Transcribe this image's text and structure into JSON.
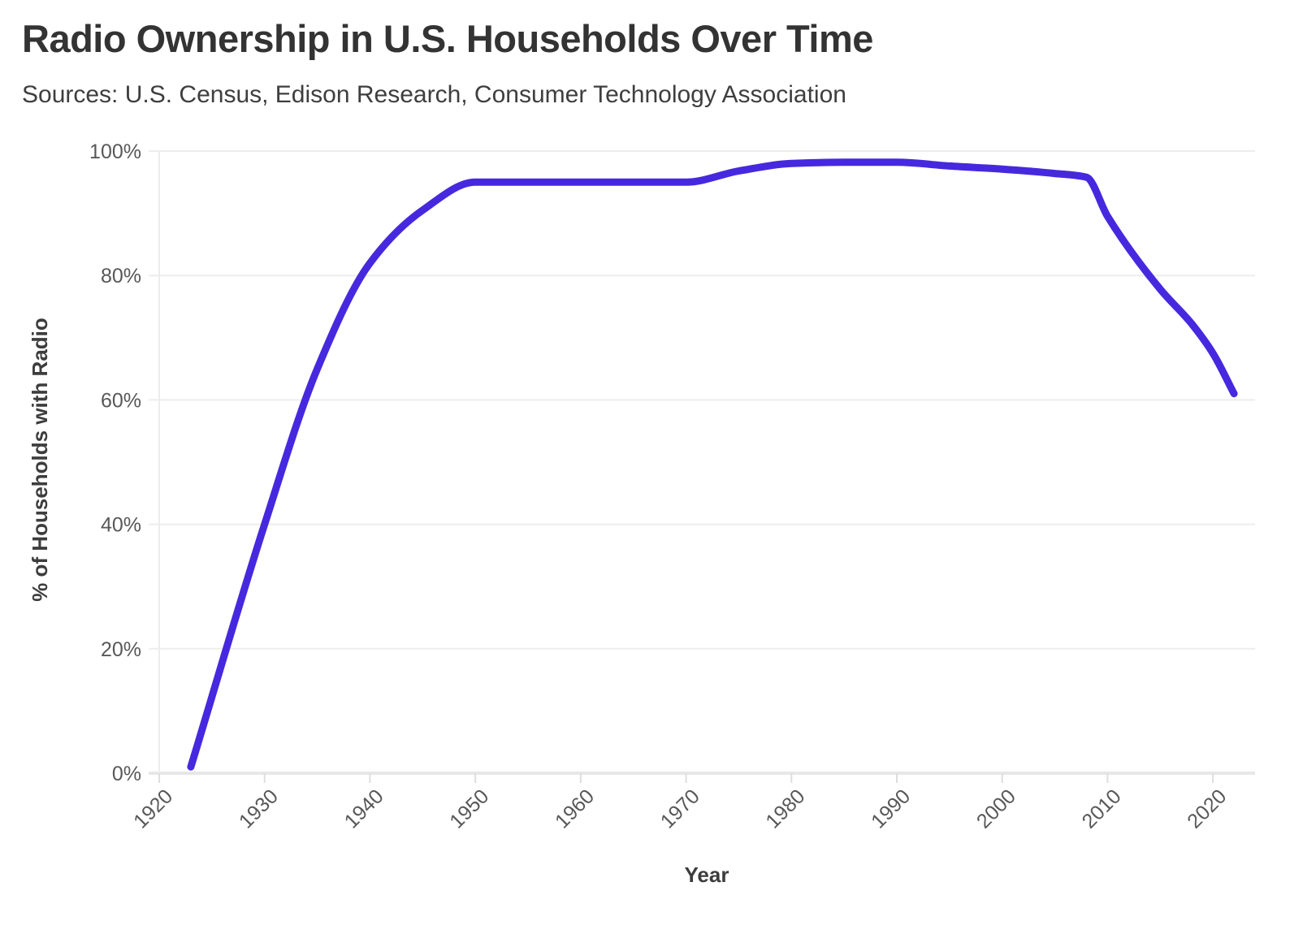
{
  "header": {
    "title": "Radio Ownership in U.S. Households Over Time",
    "subtitle": "Sources: U.S. Census, Edison Research, Consumer Technology Association"
  },
  "chart_data": {
    "type": "line",
    "title": "Radio Ownership in U.S. Households Over Time",
    "source_note": "Sources: U.S. Census, Edison Research, Consumer Technology Association",
    "xlabel": "Year",
    "ylabel": "% of Households with Radio",
    "xlim": [
      1920,
      2024
    ],
    "ylim": [
      0,
      100
    ],
    "x_ticks": [
      1920,
      1930,
      1940,
      1950,
      1960,
      1970,
      1980,
      1990,
      2000,
      2010,
      2020
    ],
    "x_tick_labels": [
      "1920",
      "1930",
      "1940",
      "1950",
      "1960",
      "1970",
      "1980",
      "1990",
      "2000",
      "2010",
      "2020"
    ],
    "y_ticks": [
      0,
      20,
      40,
      60,
      80,
      100
    ],
    "y_tick_labels": [
      "0%",
      "20%",
      "40%",
      "60%",
      "80%",
      "100%"
    ],
    "grid": "horizontal",
    "legend": "none",
    "series": [
      {
        "name": "% of Households with Radio",
        "color": "#4629de",
        "points": [
          [
            1923,
            1
          ],
          [
            1930,
            40
          ],
          [
            1935,
            65
          ],
          [
            1940,
            82
          ],
          [
            1945,
            90.5
          ],
          [
            1950,
            95
          ],
          [
            1955,
            95
          ],
          [
            1960,
            95
          ],
          [
            1965,
            95
          ],
          [
            1970,
            95
          ],
          [
            1975,
            96.8
          ],
          [
            1980,
            98
          ],
          [
            1985,
            98.2
          ],
          [
            1990,
            98.2
          ],
          [
            1995,
            97.6
          ],
          [
            2000,
            97.1
          ],
          [
            2005,
            96.4
          ],
          [
            2008,
            95.8
          ],
          [
            2010,
            89.5
          ],
          [
            2015,
            77.8
          ],
          [
            2018,
            72.2
          ],
          [
            2020,
            67.5
          ],
          [
            2022,
            61
          ]
        ]
      }
    ]
  },
  "style": {
    "line_color": "#4629de",
    "line_width": 9,
    "grid_color": "#ededed",
    "axis_line_color": "#e7e7e7",
    "tick_color": "#dedede",
    "tick_label_color": "#585858",
    "title_color": "#333333",
    "subtitle_color": "#3e3e3e",
    "axis_title_color": "#3d3d3d",
    "background": "#ffffff"
  }
}
